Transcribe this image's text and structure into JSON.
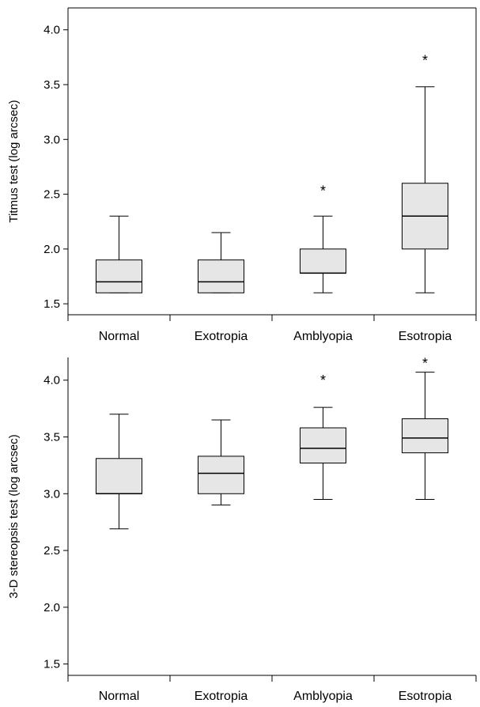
{
  "chart_data": [
    {
      "type": "box",
      "ylabel": "Titmus test (log arcsec)",
      "ylim": [
        1.4,
        4.2
      ],
      "yticks": [
        "1.5",
        "2.0",
        "2.5",
        "3.0",
        "3.5",
        "4.0"
      ],
      "categories": [
        "Normal",
        "Exotropia",
        "Amblyopia",
        "Esotropia"
      ],
      "boxes": [
        {
          "category": "Normal",
          "min": 1.6,
          "q1": 1.6,
          "median": 1.7,
          "q3": 1.9,
          "max": 2.3,
          "outliers": []
        },
        {
          "category": "Exotropia",
          "min": 1.6,
          "q1": 1.6,
          "median": 1.7,
          "q3": 1.9,
          "max": 2.15,
          "outliers": []
        },
        {
          "category": "Amblyopia",
          "min": 1.6,
          "q1": 1.78,
          "median": 1.78,
          "q3": 2.0,
          "max": 2.3,
          "outliers": [
            2.55
          ]
        },
        {
          "category": "Esotropia",
          "min": 1.6,
          "q1": 2.0,
          "median": 2.3,
          "q3": 2.6,
          "max": 3.48,
          "outliers": [
            3.74
          ]
        }
      ],
      "outlier_marker": "*"
    },
    {
      "type": "box",
      "ylabel": "3-D stereopsis test (log arcsec)",
      "ylim": [
        1.4,
        4.2
      ],
      "yticks": [
        "1.5",
        "2.0",
        "2.5",
        "3.0",
        "3.5",
        "4.0"
      ],
      "categories": [
        "Normal",
        "Exotropia",
        "Amblyopia",
        "Esotropia"
      ],
      "boxes": [
        {
          "category": "Normal",
          "min": 2.69,
          "q1": 3.0,
          "median": 3.0,
          "q3": 3.31,
          "max": 3.7,
          "outliers": []
        },
        {
          "category": "Exotropia",
          "min": 2.9,
          "q1": 3.0,
          "median": 3.18,
          "q3": 3.33,
          "max": 3.65,
          "outliers": []
        },
        {
          "category": "Amblyopia",
          "min": 2.95,
          "q1": 3.27,
          "median": 3.4,
          "q3": 3.58,
          "max": 3.76,
          "outliers": [
            4.02
          ]
        },
        {
          "category": "Esotropia",
          "min": 2.95,
          "q1": 3.36,
          "median": 3.49,
          "q3": 3.66,
          "max": 4.07,
          "outliers": [
            4.17
          ]
        }
      ],
      "outlier_marker": "*"
    }
  ],
  "colors": {
    "box_fill": "#e6e6e6",
    "stroke": "#000000",
    "background": "#ffffff"
  }
}
